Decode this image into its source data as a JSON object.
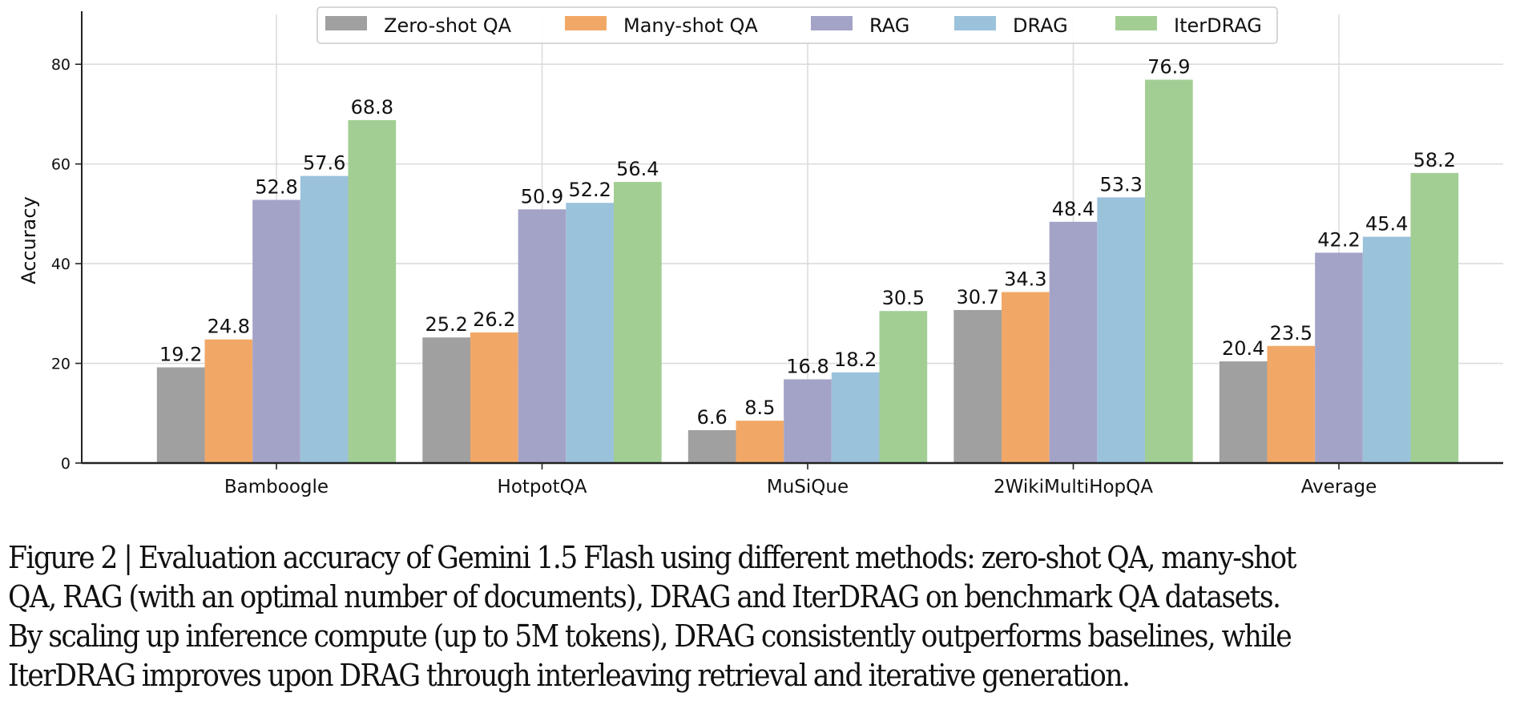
{
  "chart_data": {
    "type": "bar",
    "title": "",
    "xlabel": "",
    "ylabel": "Accuracy",
    "ylim": [
      0,
      90
    ],
    "yticks": [
      0,
      20,
      40,
      60,
      80
    ],
    "grid": true,
    "legend_position": "top-center",
    "categories": [
      "Bamboogle",
      "HotpotQA",
      "MuSiQue",
      "2WikiMultiHopQA",
      "Average"
    ],
    "series": [
      {
        "name": "Zero-shot QA",
        "color": "#a0a0a0",
        "values": [
          19.2,
          25.2,
          6.6,
          30.7,
          20.4
        ]
      },
      {
        "name": "Many-shot QA",
        "color": "#f1a867",
        "values": [
          24.8,
          26.2,
          8.5,
          34.3,
          23.5
        ]
      },
      {
        "name": "RAG",
        "color": "#a3a3c8",
        "values": [
          52.8,
          50.9,
          16.8,
          48.4,
          42.2
        ]
      },
      {
        "name": "DRAG",
        "color": "#9bc2db",
        "values": [
          57.6,
          52.2,
          18.2,
          53.3,
          45.4
        ]
      },
      {
        "name": "IterDRAG",
        "color": "#a2ce93",
        "values": [
          68.8,
          56.4,
          30.5,
          76.9,
          58.2
        ]
      }
    ]
  },
  "caption": {
    "lines": [
      "Figure 2 | Evaluation accuracy of Gemini 1.5 Flash using different methods: zero-shot QA, many-shot",
      "QA, RAG (with an optimal number of documents), DRAG and IterDRAG on benchmark QA datasets.",
      "By scaling up inference compute (up to 5M tokens), DRAG consistently outperforms baselines, while",
      "IterDRAG improves upon DRAG through interleaving retrieval and iterative generation."
    ]
  }
}
